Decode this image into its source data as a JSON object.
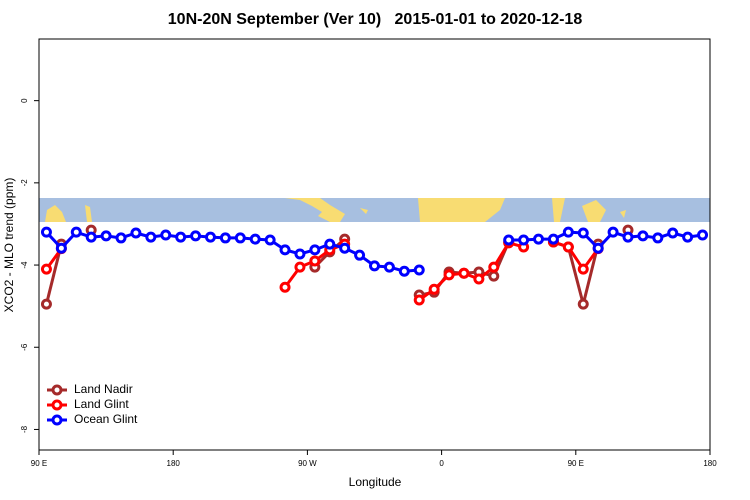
{
  "chart_data": {
    "type": "line",
    "title": "10N-20N September (Ver 10)   2015-01-01 to 2020-12-18",
    "x_label": "Longitude",
    "y_label": "XCO2 - MLO trend (ppm)",
    "xlim": [
      90,
      540
    ],
    "xticks": [
      {
        "value": 90,
        "label": "90 E"
      },
      180,
      {
        "value": 270,
        "label": "90 W"
      },
      {
        "value": 360,
        "label": "0"
      },
      {
        "value": 450,
        "label": "90 E"
      },
      {
        "value": 540,
        "label": "180"
      }
    ],
    "ylim": [
      -8.5,
      1.5
    ],
    "yticks": [
      0,
      -2,
      -4,
      -6,
      -8
    ],
    "legend": "bottomleft",
    "series": [
      {
        "name": "Land Nadir",
        "color": "#a52a2a",
        "x": [
          95,
          105,
          115,
          125,
          135,
          275,
          285,
          295,
          305,
          345,
          355,
          365,
          375,
          385,
          395,
          405,
          415,
          435,
          445,
          455,
          465,
          475,
          485
        ],
        "values": [
          -4.95,
          -3.49,
          null,
          -3.15,
          null,
          -4.05,
          -3.68,
          -3.37,
          null,
          -4.73,
          -4.66,
          -4.17,
          -4.2,
          -4.17,
          -4.27,
          -3.44,
          null,
          -3.44,
          -3.56,
          -4.95,
          -3.49,
          null,
          -3.15
        ]
      },
      {
        "name": "Land Glint",
        "color": "#ff0000",
        "x": [
          95,
          105,
          115,
          255,
          265,
          275,
          285,
          295,
          305,
          345,
          355,
          365,
          375,
          385,
          395,
          405,
          415,
          425,
          435,
          445,
          455,
          465
        ],
        "values": [
          -4.1,
          -3.6,
          null,
          -4.54,
          -4.05,
          -3.9,
          -3.63,
          -3.49,
          null,
          -4.85,
          -4.59,
          -4.24,
          -4.2,
          -4.34,
          -4.05,
          -3.46,
          -3.56,
          null,
          -3.44,
          -3.56,
          -4.1,
          -3.6
        ]
      },
      {
        "name": "Ocean Glint",
        "color": "#0000ff",
        "x": [
          95,
          105,
          115,
          125,
          135,
          145,
          155,
          165,
          175,
          185,
          195,
          205,
          215,
          225,
          235,
          245,
          255,
          265,
          275,
          285,
          295,
          305,
          315,
          325,
          335,
          345,
          355,
          405,
          415,
          425,
          435,
          445,
          455,
          465,
          475,
          485,
          495,
          505,
          515,
          525,
          535
        ],
        "values": [
          -3.2,
          -3.59,
          -3.2,
          -3.32,
          -3.29,
          -3.34,
          -3.22,
          -3.32,
          -3.27,
          -3.32,
          -3.29,
          -3.32,
          -3.34,
          -3.34,
          -3.37,
          -3.39,
          -3.63,
          -3.73,
          -3.63,
          -3.49,
          -3.59,
          -3.76,
          -4.02,
          -4.05,
          -4.15,
          -4.12,
          null,
          -3.39,
          -3.39,
          -3.37,
          -3.37,
          -3.2,
          -3.22,
          -3.59,
          -3.2,
          -3.32,
          -3.29,
          -3.34,
          -3.22,
          -3.32,
          -3.27
        ]
      }
    ]
  }
}
